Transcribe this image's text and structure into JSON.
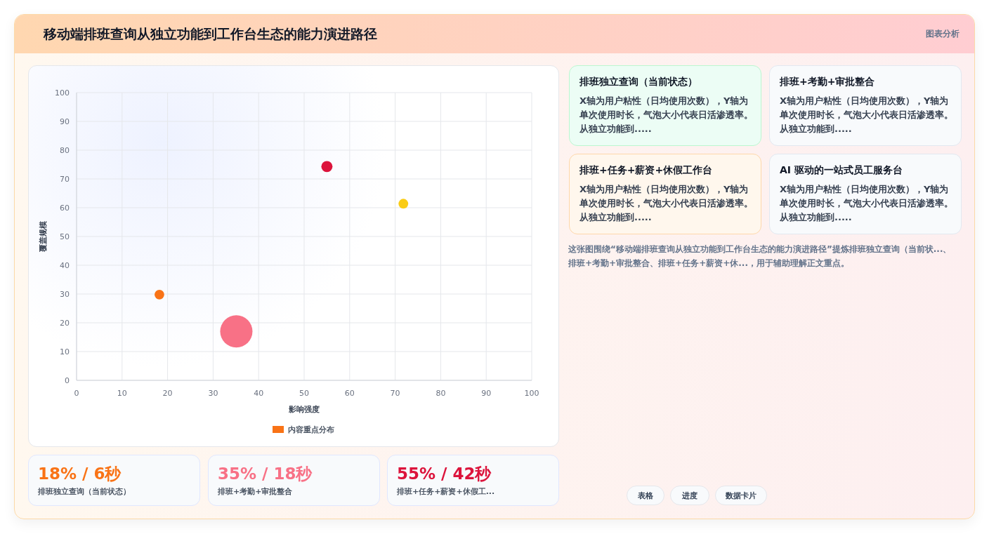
{
  "chart_data": [
    {
      "type": "bubble",
      "title": "移动端排班查询从独立功能到工作台生态的能力演进路径",
      "xlabel": "影响强度",
      "ylabel": "覆盖规模",
      "xlim": [
        0,
        100
      ],
      "xticks": [
        0,
        10,
        20,
        30,
        40,
        50,
        60,
        70,
        80,
        90,
        100
      ],
      "ylim": [
        0,
        100
      ],
      "yticks": [
        0,
        10,
        20,
        30,
        40,
        50,
        60,
        70,
        80,
        90,
        100
      ],
      "grid": true,
      "legend": "bottom",
      "series": [
        {
          "name": "内容重点分布",
          "color": "#f97316",
          "x": [
            18.2,
            35.1,
            55,
            71.8
          ],
          "values": [
            29.8,
            17,
            74.3,
            61.4
          ],
          "sizes": [
            0.09,
            1,
            0.12,
            0.09
          ],
          "colors": [
            "#f97316",
            "#f87186",
            "#dc143c",
            "#facc15"
          ]
        }
      ]
    },
    {
      "type": "other",
      "annotations": [
        "排班独立查询（当前状态）",
        "X轴为用户粘性（日均使用次数），Y轴为单次使用时长，气泡大小代表日活渗透率。从独立功能到.....",
        "排班+考勤+审批整合",
        "X轴为用户粘性（日均使用次数），Y轴为单次使用时长，气泡大小代表日活渗透率。从独立功能到.....",
        "排班+任务+薪资+休假工作台",
        "X轴为用户粘性（日均使用次数），Y轴为单次使用时长，气泡大小代表日活渗透率。从独立功能到.....",
        "AI 驱动的一站式员工服务台",
        "X轴为用户粘性（日均使用次数），Y轴为单次使用时长，气泡大小代表日活渗透率。从独立功能到....."
      ]
    },
    {
      "type": "other",
      "annotations": [
        "18% / 6秒",
        "排班独立查询（当前状态）",
        "35% / 18秒",
        "排班+考勤+审批整合",
        "55% / 42秒",
        "排班+任务+薪资+休假工..."
      ]
    },
    {
      "type": "other",
      "annotations": [
        "图表分析"
      ]
    },
    {
      "type": "other",
      "annotations": [
        "这张图围绕“移动端排班查询从独立功能到工作台生态的能力演进路径”提炼排班独立查询（当前状...、排班+考勤+审批整合、排班+任务+薪资+休...，用于辅助理解正文重点。",
        "表格",
        "进度",
        "数据卡片"
      ]
    }
  ]
}
